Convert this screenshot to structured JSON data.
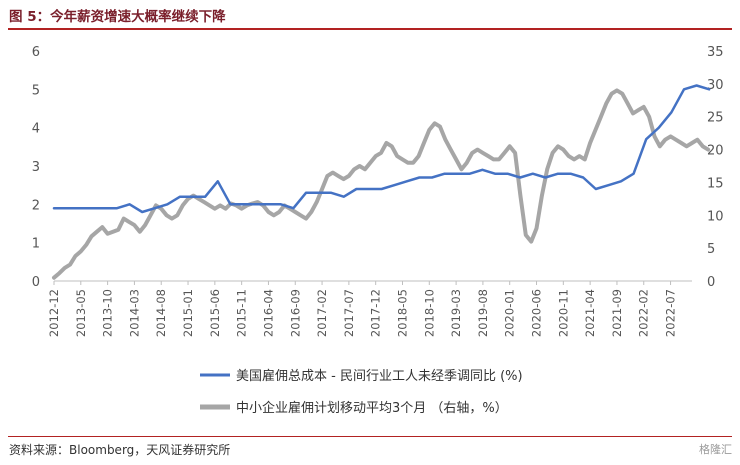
{
  "header": {
    "title": "图 5：今年薪资增速大概率继续下降"
  },
  "footer": {
    "source": "资料来源：Bloomberg，天风证券研究所",
    "watermark": "格隆汇"
  },
  "chart_data": {
    "type": "line",
    "title": "图 5：今年薪资增速大概率继续下降",
    "y_left": {
      "min": 0,
      "max": 6,
      "ticks": [
        0,
        1,
        2,
        3,
        4,
        5,
        6
      ]
    },
    "y_right": {
      "min": 0,
      "max": 35,
      "ticks": [
        0,
        5,
        10,
        15,
        20,
        25,
        30,
        35
      ]
    },
    "x_tick_labels": [
      "2012-12",
      "2013-05",
      "2013-10",
      "2014-03",
      "2014-08",
      "2015-01",
      "2015-06",
      "2015-11",
      "2016-04",
      "2016-09",
      "2017-02",
      "2017-07",
      "2017-12",
      "2018-05",
      "2018-10",
      "2019-03",
      "2019-08",
      "2020-01",
      "2020-06",
      "2020-11",
      "2021-04",
      "2021-09",
      "2022-02",
      "2022-07"
    ],
    "series": [
      {
        "name": "美国雇佣总成本 - 民间行业工人未经季调同比 (%)",
        "axis": "left",
        "color": "#4472c4",
        "frequency": "quarterly",
        "start_month_index": 0,
        "values": [
          1.9,
          1.9,
          1.9,
          1.9,
          1.9,
          1.9,
          2.0,
          1.8,
          1.9,
          2.0,
          2.2,
          2.2,
          2.2,
          2.6,
          2.0,
          2.0,
          2.0,
          2.0,
          2.0,
          1.9,
          2.3,
          2.3,
          2.3,
          2.2,
          2.4,
          2.4,
          2.4,
          2.5,
          2.6,
          2.7,
          2.7,
          2.8,
          2.8,
          2.8,
          2.9,
          2.8,
          2.8,
          2.7,
          2.8,
          2.7,
          2.8,
          2.8,
          2.7,
          2.4,
          2.5,
          2.6,
          2.8,
          3.7,
          4.0,
          4.4,
          5.0,
          5.1,
          5.0
        ]
      },
      {
        "name": "中小企业雇佣计划移动平均3个月 （右轴，%）",
        "axis": "right",
        "color": "#a6a6a6",
        "frequency": "monthly",
        "start_month_index": 0,
        "values": [
          0.5,
          1.2,
          2.0,
          2.5,
          3.8,
          4.5,
          5.5,
          6.8,
          7.5,
          8.2,
          7.2,
          7.5,
          7.8,
          9.5,
          9.0,
          8.5,
          7.5,
          8.5,
          10,
          11.5,
          11,
          10,
          9.5,
          10,
          11.5,
          12.5,
          13,
          12.5,
          12,
          11.5,
          11,
          11.5,
          11,
          11.8,
          11.5,
          11,
          11.5,
          11.8,
          12,
          11.5,
          10.5,
          10,
          10.5,
          11.5,
          11,
          10.5,
          10,
          9.5,
          10.5,
          12,
          14,
          16,
          16.5,
          16,
          15.5,
          16,
          17,
          17.5,
          17,
          18,
          19,
          19.5,
          21,
          20.5,
          19,
          18.5,
          18,
          18,
          19,
          21,
          23,
          24,
          23.5,
          21.5,
          20,
          18.5,
          17,
          18,
          19.5,
          20,
          19.5,
          19,
          18.5,
          18.5,
          19.5,
          20.5,
          19.5,
          13,
          7,
          6,
          8,
          13,
          17,
          19.5,
          20.5,
          20,
          19,
          18.5,
          19,
          18.5,
          21,
          23,
          25,
          27,
          28.5,
          29,
          28.5,
          27,
          25.5,
          26,
          26.5,
          25,
          22,
          20.5,
          21.5,
          22,
          21.5,
          21,
          20.5,
          21,
          21.5,
          20.5,
          20
        ]
      }
    ],
    "x_total_months": 120,
    "legend": [
      "美国雇佣总成本 - 民间行业工人未经季调同比 (%)",
      "中小企业雇佣计划移动平均3个月 （右轴，%）"
    ]
  }
}
